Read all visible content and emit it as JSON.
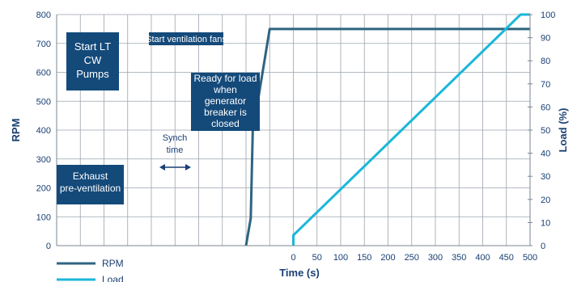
{
  "chart_data": {
    "type": "line",
    "title": "",
    "xlabel": "Time (s)",
    "ylabel_left": "RPM",
    "ylabel_right": "Load (%)",
    "x_ticks": [
      0,
      50,
      100,
      150,
      200,
      250,
      300,
      350,
      400,
      450,
      500
    ],
    "xlim": [
      -500,
      500
    ],
    "ylim_left": [
      0,
      800
    ],
    "ylim_right": [
      0,
      100
    ],
    "y_left_ticks": [
      0,
      100,
      200,
      300,
      400,
      500,
      600,
      700,
      800
    ],
    "y_right_ticks": [
      0,
      10,
      20,
      30,
      40,
      50,
      60,
      70,
      80,
      90,
      100
    ],
    "grid": true,
    "legend_position": "bottom-left",
    "series": [
      {
        "name": "RPM",
        "axis": "left",
        "color": "#2e6480",
        "points": [
          [
            -100,
            0
          ],
          [
            -90,
            95
          ],
          [
            -85,
            450
          ],
          [
            -80,
            450
          ],
          [
            -50,
            750
          ],
          [
            500,
            750
          ]
        ]
      },
      {
        "name": "Load",
        "axis": "right",
        "color": "#1ab7d9",
        "points": [
          [
            0,
            0
          ],
          [
            0,
            4.5
          ],
          [
            480,
            100
          ],
          [
            500,
            100
          ]
        ]
      }
    ],
    "annotations": [
      {
        "id": "lt-cw",
        "boxed": true,
        "lines": [
          "Start LT",
          "CW",
          "Pumps"
        ]
      },
      {
        "id": "vent",
        "boxed": true,
        "lines": [
          "Start ventilation fans"
        ]
      },
      {
        "id": "ready",
        "boxed": true,
        "lines": [
          "Ready for load",
          "when",
          "generator",
          "breaker is",
          "closed"
        ]
      },
      {
        "id": "synch",
        "boxed": false,
        "lines": [
          "Synch",
          "time"
        ]
      },
      {
        "id": "exhaust",
        "boxed": true,
        "lines": [
          "Exhaust",
          "pre-ventilation"
        ]
      }
    ]
  }
}
